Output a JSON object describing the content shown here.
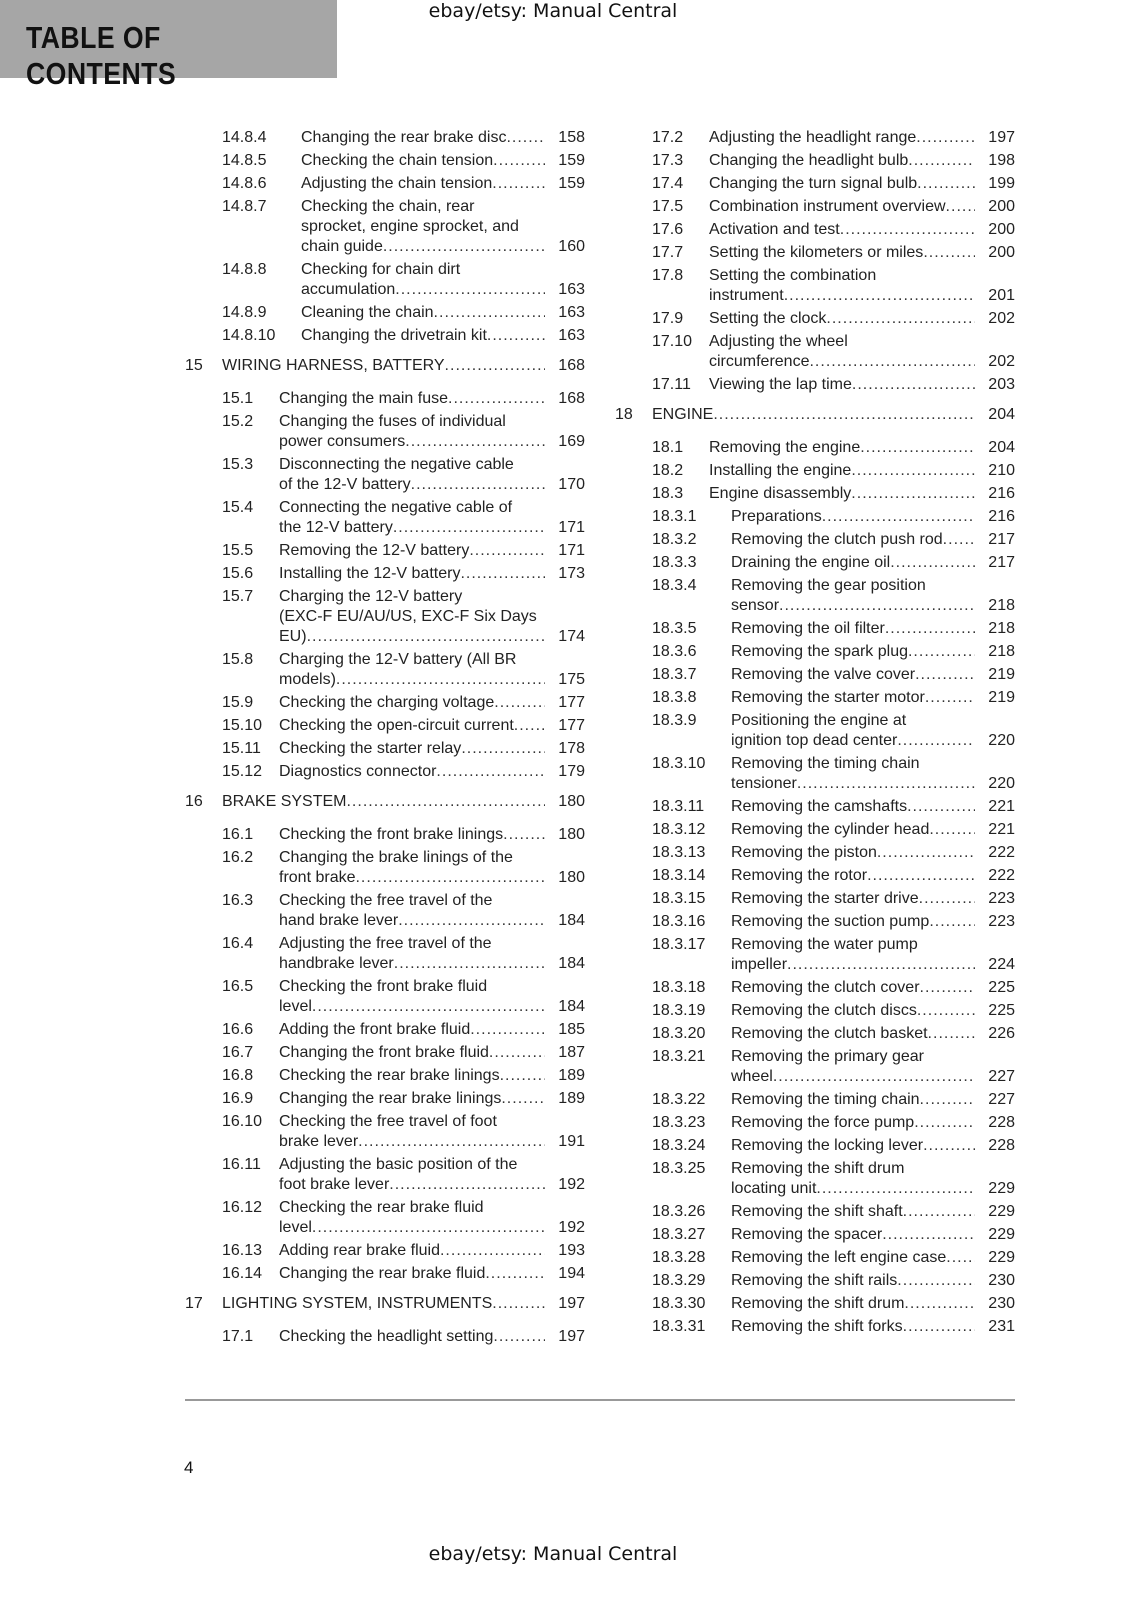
{
  "watermark": "ebay/etsy: Manual Central",
  "header": {
    "title": "TABLE OF CONTENTS",
    "background": "#a6a6a6"
  },
  "columns": {
    "left": [
      {
        "num": "14.8.4",
        "lines": [
          "Changing the rear brake disc"
        ],
        "page": "158"
      },
      {
        "num": "14.8.5",
        "lines": [
          "Checking the chain tension"
        ],
        "page": "159"
      },
      {
        "num": "14.8.6",
        "lines": [
          "Adjusting the chain tension"
        ],
        "page": "159"
      },
      {
        "num": "14.8.7",
        "lines": [
          "Checking the chain, rear",
          "sprocket, engine sprocket, and",
          "chain guide"
        ],
        "page": "160"
      },
      {
        "num": "14.8.8",
        "lines": [
          "Checking for chain dirt",
          "accumulation"
        ],
        "page": "163"
      },
      {
        "num": "14.8.9",
        "lines": [
          "Cleaning the chain"
        ],
        "page": "163"
      },
      {
        "num": "14.8.10",
        "lines": [
          "Changing the drivetrain kit"
        ],
        "page": "163"
      },
      {
        "num": "15",
        "lines": [
          "WIRING HARNESS, BATTERY"
        ],
        "page": "168",
        "chapter": true
      },
      {
        "num": "15.1",
        "lines": [
          "Changing the main fuse"
        ],
        "page": "168"
      },
      {
        "num": "15.2",
        "lines": [
          "Changing the fuses of individual",
          "power consumers"
        ],
        "page": "169"
      },
      {
        "num": "15.3",
        "lines": [
          "Disconnecting the negative cable",
          "of the 12-V battery"
        ],
        "page": "170"
      },
      {
        "num": "15.4",
        "lines": [
          "Connecting the negative cable of",
          "the 12-V battery"
        ],
        "page": "171"
      },
      {
        "num": "15.5",
        "lines": [
          "Removing the 12-V battery"
        ],
        "page": "171"
      },
      {
        "num": "15.6",
        "lines": [
          "Installing the 12-V battery"
        ],
        "page": "173"
      },
      {
        "num": "15.7",
        "lines": [
          "Charging the 12-V battery",
          "(EXC-F EU/AU/US, EXC-F Six Days",
          "EU)"
        ],
        "page": "174"
      },
      {
        "num": "15.8",
        "lines": [
          "Charging the 12-V battery (All BR",
          "models)"
        ],
        "page": "175"
      },
      {
        "num": "15.9",
        "lines": [
          "Checking the charging voltage"
        ],
        "page": "177"
      },
      {
        "num": "15.10",
        "lines": [
          "Checking the open-circuit current"
        ],
        "page": "177"
      },
      {
        "num": "15.11",
        "lines": [
          "Checking the starter relay"
        ],
        "page": "178"
      },
      {
        "num": "15.12",
        "lines": [
          "Diagnostics connector"
        ],
        "page": "179"
      },
      {
        "num": "16",
        "lines": [
          "BRAKE SYSTEM"
        ],
        "page": "180",
        "chapter": true
      },
      {
        "num": "16.1",
        "lines": [
          "Checking the front brake linings"
        ],
        "page": "180"
      },
      {
        "num": "16.2",
        "lines": [
          "Changing the brake linings of the",
          "front brake"
        ],
        "page": "180"
      },
      {
        "num": "16.3",
        "lines": [
          "Checking the free travel of the",
          "hand brake lever"
        ],
        "page": "184"
      },
      {
        "num": "16.4",
        "lines": [
          "Adjusting the free travel of the",
          "handbrake lever"
        ],
        "page": "184"
      },
      {
        "num": "16.5",
        "lines": [
          "Checking the front brake fluid",
          "level"
        ],
        "page": "184"
      },
      {
        "num": "16.6",
        "lines": [
          "Adding the front brake fluid"
        ],
        "page": "185"
      },
      {
        "num": "16.7",
        "lines": [
          "Changing the front brake fluid"
        ],
        "page": "187"
      },
      {
        "num": "16.8",
        "lines": [
          "Checking the rear brake linings"
        ],
        "page": "189"
      },
      {
        "num": "16.9",
        "lines": [
          "Changing the rear brake linings"
        ],
        "page": "189"
      },
      {
        "num": "16.10",
        "lines": [
          "Checking the free travel of foot",
          "brake lever"
        ],
        "page": "191"
      },
      {
        "num": "16.11",
        "lines": [
          "Adjusting the basic position of the",
          "foot brake lever"
        ],
        "page": "192"
      },
      {
        "num": "16.12",
        "lines": [
          "Checking the rear brake fluid",
          "level"
        ],
        "page": "192"
      },
      {
        "num": "16.13",
        "lines": [
          "Adding rear brake fluid"
        ],
        "page": "193"
      },
      {
        "num": "16.14",
        "lines": [
          "Changing the rear brake fluid"
        ],
        "page": "194"
      },
      {
        "num": "17",
        "lines": [
          "LIGHTING SYSTEM, INSTRUMENTS"
        ],
        "page": "197",
        "chapter": true
      },
      {
        "num": "17.1",
        "lines": [
          "Checking the headlight setting"
        ],
        "page": "197"
      }
    ],
    "right": [
      {
        "num": "17.2",
        "lines": [
          "Adjusting the headlight range"
        ],
        "page": "197"
      },
      {
        "num": "17.3",
        "lines": [
          "Changing the headlight bulb"
        ],
        "page": "198"
      },
      {
        "num": "17.4",
        "lines": [
          "Changing the turn signal bulb"
        ],
        "page": "199"
      },
      {
        "num": "17.5",
        "lines": [
          "Combination instrument overview"
        ],
        "page": "200"
      },
      {
        "num": "17.6",
        "lines": [
          "Activation and test"
        ],
        "page": "200"
      },
      {
        "num": "17.7",
        "lines": [
          "Setting the kilometers or miles"
        ],
        "page": "200"
      },
      {
        "num": "17.8",
        "lines": [
          "Setting the combination",
          "instrument"
        ],
        "page": "201"
      },
      {
        "num": "17.9",
        "lines": [
          "Setting the clock"
        ],
        "page": "202"
      },
      {
        "num": "17.10",
        "lines": [
          "Adjusting the wheel",
          "circumference"
        ],
        "page": "202"
      },
      {
        "num": "17.11",
        "lines": [
          "Viewing the lap time"
        ],
        "page": "203"
      },
      {
        "num": "18",
        "lines": [
          "ENGINE"
        ],
        "page": "204",
        "chapter": true
      },
      {
        "num": "18.1",
        "lines": [
          "Removing the engine"
        ],
        "page": "204"
      },
      {
        "num": "18.2",
        "lines": [
          "Installing the engine"
        ],
        "page": "210"
      },
      {
        "num": "18.3",
        "lines": [
          "Engine disassembly"
        ],
        "page": "216"
      },
      {
        "num": "18.3.1",
        "lines": [
          "Preparations"
        ],
        "page": "216"
      },
      {
        "num": "18.3.2",
        "lines": [
          "Removing the clutch push rod"
        ],
        "page": "217"
      },
      {
        "num": "18.3.3",
        "lines": [
          "Draining the engine oil"
        ],
        "page": "217"
      },
      {
        "num": "18.3.4",
        "lines": [
          "Removing the gear position",
          "sensor"
        ],
        "page": "218"
      },
      {
        "num": "18.3.5",
        "lines": [
          "Removing the oil filter"
        ],
        "page": "218"
      },
      {
        "num": "18.3.6",
        "lines": [
          "Removing the spark plug"
        ],
        "page": "218"
      },
      {
        "num": "18.3.7",
        "lines": [
          "Removing the valve cover"
        ],
        "page": "219"
      },
      {
        "num": "18.3.8",
        "lines": [
          "Removing the starter motor"
        ],
        "page": "219"
      },
      {
        "num": "18.3.9",
        "lines": [
          "Positioning the engine at",
          "ignition top dead center"
        ],
        "page": "220"
      },
      {
        "num": "18.3.10",
        "lines": [
          "Removing the timing chain",
          "tensioner"
        ],
        "page": "220"
      },
      {
        "num": "18.3.11",
        "lines": [
          "Removing the camshafts"
        ],
        "page": "221"
      },
      {
        "num": "18.3.12",
        "lines": [
          "Removing the cylinder head"
        ],
        "page": "221"
      },
      {
        "num": "18.3.13",
        "lines": [
          "Removing the piston"
        ],
        "page": "222"
      },
      {
        "num": "18.3.14",
        "lines": [
          "Removing the rotor"
        ],
        "page": "222"
      },
      {
        "num": "18.3.15",
        "lines": [
          "Removing the starter drive"
        ],
        "page": "223"
      },
      {
        "num": "18.3.16",
        "lines": [
          "Removing the suction pump"
        ],
        "page": "223"
      },
      {
        "num": "18.3.17",
        "lines": [
          "Removing the water pump",
          "impeller"
        ],
        "page": "224"
      },
      {
        "num": "18.3.18",
        "lines": [
          "Removing the clutch cover"
        ],
        "page": "225"
      },
      {
        "num": "18.3.19",
        "lines": [
          "Removing the clutch discs"
        ],
        "page": "225"
      },
      {
        "num": "18.3.20",
        "lines": [
          "Removing the clutch basket"
        ],
        "page": "226"
      },
      {
        "num": "18.3.21",
        "lines": [
          "Removing the primary gear",
          "wheel"
        ],
        "page": "227"
      },
      {
        "num": "18.3.22",
        "lines": [
          "Removing the timing chain"
        ],
        "page": "227"
      },
      {
        "num": "18.3.23",
        "lines": [
          "Removing the force pump"
        ],
        "page": "228"
      },
      {
        "num": "18.3.24",
        "lines": [
          "Removing the locking lever"
        ],
        "page": "228"
      },
      {
        "num": "18.3.25",
        "lines": [
          "Removing the shift drum",
          "locating unit"
        ],
        "page": "229"
      },
      {
        "num": "18.3.26",
        "lines": [
          "Removing the shift shaft"
        ],
        "page": "229"
      },
      {
        "num": "18.3.27",
        "lines": [
          "Removing the spacer"
        ],
        "page": "229"
      },
      {
        "num": "18.3.28",
        "lines": [
          "Removing the left engine case"
        ],
        "page": "229"
      },
      {
        "num": "18.3.29",
        "lines": [
          "Removing the shift rails"
        ],
        "page": "230"
      },
      {
        "num": "18.3.30",
        "lines": [
          "Removing the shift drum"
        ],
        "page": "230"
      },
      {
        "num": "18.3.31",
        "lines": [
          "Removing the shift forks"
        ],
        "page": "231"
      }
    ]
  },
  "footer": {
    "page_number": "4"
  }
}
